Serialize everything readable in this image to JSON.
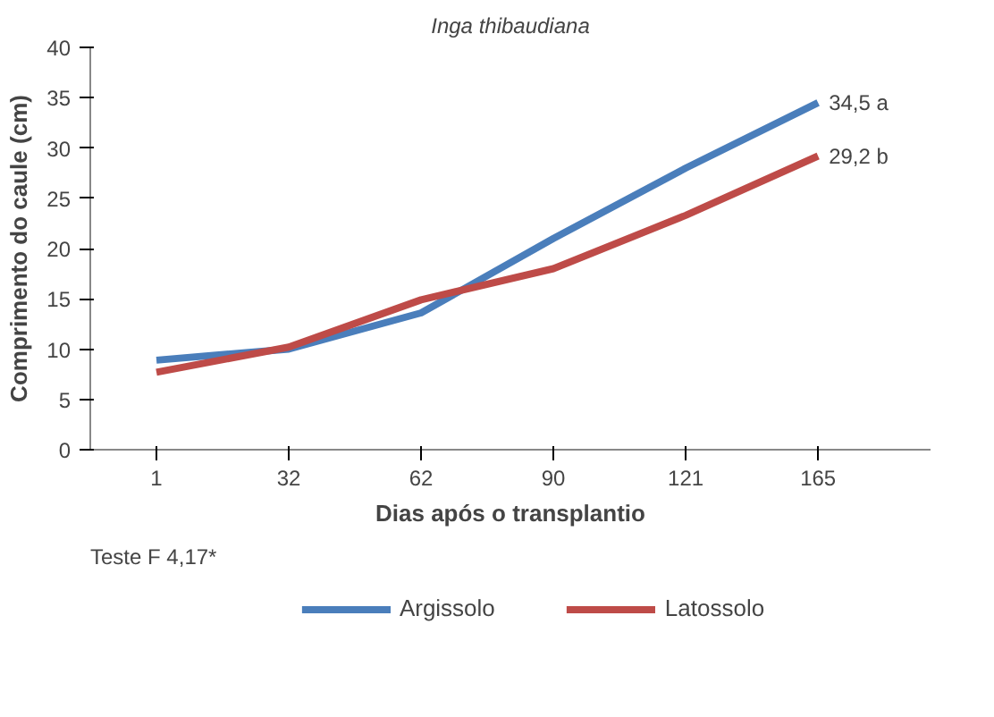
{
  "chart_data": {
    "type": "line",
    "title": "Inga thibaudiana",
    "xlabel": "Dias após o transplantio",
    "ylabel": "Comprimento do caule (cm)",
    "categories": [
      "1",
      "32",
      "62",
      "90",
      "121",
      "165"
    ],
    "series": [
      {
        "name": "Argissolo",
        "color": "#4a7ebb",
        "values": [
          8.9,
          10.0,
          13.6,
          21.0,
          28.0,
          34.5
        ],
        "value_labels": [
          null,
          null,
          null,
          null,
          null,
          "34,5 a"
        ]
      },
      {
        "name": "Latossolo",
        "color": "#be4b48",
        "values": [
          7.7,
          10.2,
          14.9,
          18.0,
          23.3,
          29.2
        ],
        "value_labels": [
          null,
          null,
          null,
          null,
          null,
          "29,2 b"
        ]
      }
    ],
    "ylim": [
      0,
      40
    ],
    "yticks": [
      0,
      5,
      10,
      15,
      20,
      25,
      30,
      35,
      40
    ],
    "grid": false,
    "legend": "bottom",
    "marker": "none",
    "line_style": "solid",
    "annotations": [
      "Teste F  4,17*"
    ]
  }
}
